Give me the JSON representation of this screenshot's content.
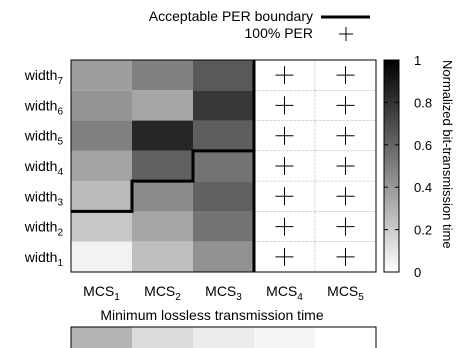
{
  "chart_data": {
    "type": "heatmap",
    "rows": [
      {
        "base": "width",
        "sub": "7"
      },
      {
        "base": "width",
        "sub": "6"
      },
      {
        "base": "width",
        "sub": "5"
      },
      {
        "base": "width",
        "sub": "4"
      },
      {
        "base": "width",
        "sub": "3"
      },
      {
        "base": "width",
        "sub": "2"
      },
      {
        "base": "width",
        "sub": "1"
      }
    ],
    "columns": [
      {
        "base": "MCS",
        "sub": "1"
      },
      {
        "base": "MCS",
        "sub": "2"
      },
      {
        "base": "MCS",
        "sub": "3"
      },
      {
        "base": "MCS",
        "sub": "4"
      },
      {
        "base": "MCS",
        "sub": "5"
      }
    ],
    "values": [
      [
        0.38,
        0.5,
        0.65,
        null,
        null
      ],
      [
        0.42,
        0.35,
        0.78,
        null,
        null
      ],
      [
        0.5,
        0.85,
        0.63,
        null,
        null
      ],
      [
        0.36,
        0.62,
        0.55,
        null,
        null
      ],
      [
        0.27,
        0.45,
        0.62,
        null,
        null
      ],
      [
        0.22,
        0.35,
        0.55,
        null,
        null
      ],
      [
        0.05,
        0.25,
        0.43,
        null,
        null
      ]
    ],
    "per100_mask": [
      [
        false,
        false,
        false,
        true,
        true
      ],
      [
        false,
        false,
        false,
        true,
        true
      ],
      [
        false,
        false,
        false,
        true,
        true
      ],
      [
        false,
        false,
        false,
        true,
        true
      ],
      [
        false,
        false,
        false,
        true,
        true
      ],
      [
        false,
        false,
        false,
        true,
        true
      ],
      [
        false,
        false,
        false,
        true,
        true
      ]
    ],
    "boundary_max_width_row": [
      5,
      4,
      3,
      0,
      0
    ],
    "colorbar": {
      "label": "Normalized bit-transmission time",
      "range": [
        0,
        1
      ],
      "ticks": [
        "0",
        "0.2",
        "0.4",
        "0.6",
        "0.8",
        "1"
      ],
      "scale": "black (1) to white (0)"
    },
    "legend": {
      "position": "top-right",
      "entries": [
        {
          "label": "Acceptable PER boundary",
          "marker": "thick-line"
        },
        {
          "label": "100% PER",
          "marker": "plus"
        }
      ]
    },
    "bottom_bar": {
      "title": "Minimum lossless transmission time",
      "values": [
        0.3,
        0.14,
        0.08,
        0.04,
        0.0
      ]
    }
  }
}
